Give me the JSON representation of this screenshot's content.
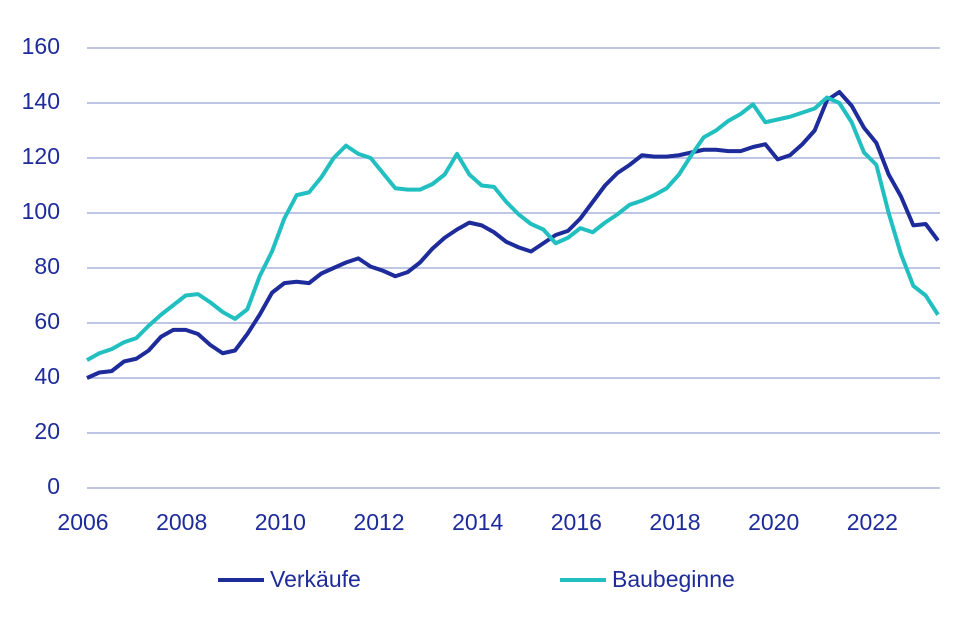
{
  "chart_data": {
    "type": "line",
    "x": [
      2006,
      2006.25,
      2006.5,
      2006.75,
      2007,
      2007.25,
      2007.5,
      2007.75,
      2008,
      2008.25,
      2008.5,
      2008.75,
      2009,
      2009.25,
      2009.5,
      2009.75,
      2010,
      2010.25,
      2010.5,
      2010.75,
      2011,
      2011.25,
      2011.5,
      2011.75,
      2012,
      2012.25,
      2012.5,
      2012.75,
      2013,
      2013.25,
      2013.5,
      2013.75,
      2014,
      2014.25,
      2014.5,
      2014.75,
      2015,
      2015.25,
      2015.5,
      2015.75,
      2016,
      2016.25,
      2016.5,
      2016.75,
      2017,
      2017.25,
      2017.5,
      2017.75,
      2018,
      2018.25,
      2018.5,
      2018.75,
      2019,
      2019.25,
      2019.5,
      2019.75,
      2020,
      2020.25,
      2020.5,
      2020.75,
      2021,
      2021.25,
      2021.5,
      2021.75,
      2022,
      2022.25,
      2022.5,
      2022.75,
      2023,
      2023.25
    ],
    "series": [
      {
        "name": "Verkäufe",
        "color": "#1e2b9a",
        "values": [
          40,
          42,
          42.5,
          46,
          47,
          50,
          55,
          57.5,
          57.5,
          56,
          52,
          49,
          50,
          56,
          63,
          71,
          74.5,
          75,
          74.5,
          78,
          80,
          82,
          83.5,
          80.5,
          79,
          77,
          78.5,
          82,
          87,
          91,
          94,
          96.5,
          95.5,
          93,
          89.5,
          87.5,
          86,
          89,
          92,
          93.5,
          98,
          104,
          110,
          114.5,
          117.5,
          121,
          120.5,
          120.5,
          121,
          122,
          123,
          123,
          122.5,
          122.5,
          124,
          125,
          119.5,
          121,
          125,
          130,
          141,
          144,
          139,
          131,
          125.5,
          114,
          106,
          95.5,
          96,
          90
        ]
      },
      {
        "name": "Baubeginne",
        "color": "#22bfc0",
        "values": [
          46.5,
          49,
          50.5,
          53,
          54.5,
          59,
          63,
          66.5,
          70,
          70.5,
          67.5,
          64,
          61.5,
          65,
          77,
          86,
          98,
          106.5,
          107.5,
          113,
          120,
          124.5,
          121.5,
          120,
          114.5,
          109,
          108.5,
          108.5,
          110.5,
          114,
          121.5,
          114,
          110,
          109.5,
          104,
          99.5,
          96,
          94,
          89,
          91,
          94.5,
          93,
          96.5,
          99.5,
          103,
          104.5,
          106.5,
          109,
          114,
          121,
          127.5,
          130,
          133.5,
          136,
          139.5,
          133,
          134,
          135,
          136.5,
          138,
          142,
          140,
          133,
          122,
          117.5,
          100,
          85,
          73.5,
          70,
          63
        ]
      }
    ],
    "xlim": [
      2006,
      2023.25
    ],
    "xticks": [
      2006,
      2008,
      2010,
      2012,
      2014,
      2016,
      2018,
      2020,
      2022
    ],
    "ylim": [
      0,
      160
    ],
    "yticks": [
      0,
      20,
      40,
      60,
      80,
      100,
      120,
      140,
      160
    ],
    "grid": true
  }
}
